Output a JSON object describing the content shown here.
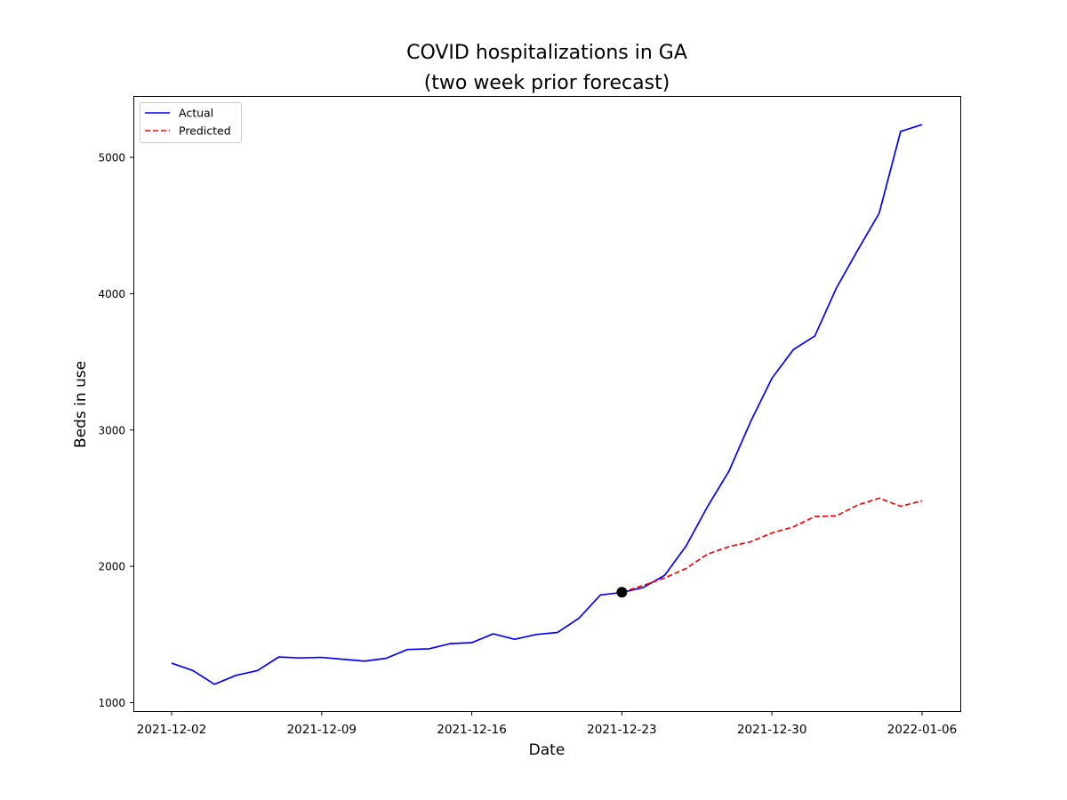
{
  "chart_data": {
    "type": "line",
    "title": [
      "COVID hospitalizations in GA",
      "(two week prior forecast)"
    ],
    "xlabel": "Date",
    "ylabel": "Beds in use",
    "x_range": [
      "2021-12-02",
      "2022-01-06"
    ],
    "ylim": [
      950,
      5450
    ],
    "x_ticks": [
      "2021-12-02",
      "2021-12-09",
      "2021-12-16",
      "2021-12-23",
      "2021-12-30",
      "2022-01-06"
    ],
    "y_ticks": [
      1000,
      2000,
      3000,
      4000,
      5000
    ],
    "grid": false,
    "legend": "upper-left",
    "series": [
      {
        "name": "Actual",
        "color": "#0000ff",
        "style": "solid",
        "x": [
          "2021-12-02",
          "2021-12-03",
          "2021-12-04",
          "2021-12-05",
          "2021-12-06",
          "2021-12-07",
          "2021-12-08",
          "2021-12-09",
          "2021-12-10",
          "2021-12-11",
          "2021-12-12",
          "2021-12-13",
          "2021-12-14",
          "2021-12-15",
          "2021-12-16",
          "2021-12-17",
          "2021-12-18",
          "2021-12-19",
          "2021-12-20",
          "2021-12-21",
          "2021-12-22",
          "2021-12-23",
          "2021-12-24",
          "2021-12-25",
          "2021-12-26",
          "2021-12-27",
          "2021-12-28",
          "2021-12-29",
          "2021-12-30",
          "2021-12-31",
          "2022-01-01",
          "2022-01-02",
          "2022-01-03",
          "2022-01-04",
          "2022-01-05",
          "2022-01-06"
        ],
        "values": [
          1290,
          1235,
          1135,
          1200,
          1235,
          1335,
          1328,
          1332,
          1318,
          1305,
          1325,
          1390,
          1395,
          1433,
          1440,
          1505,
          1465,
          1500,
          1515,
          1620,
          1790,
          1808,
          1845,
          1935,
          2150,
          2440,
          2700,
          3060,
          3380,
          3590,
          3690,
          4040,
          4320,
          4590,
          5190,
          5240
        ]
      },
      {
        "name": "Predicted",
        "color": "#ff0000",
        "style": "dashed",
        "x": [
          "2021-12-23",
          "2021-12-24",
          "2021-12-25",
          "2021-12-26",
          "2021-12-27",
          "2021-12-28",
          "2021-12-29",
          "2021-12-30",
          "2021-12-31",
          "2022-01-01",
          "2022-01-02",
          "2022-01-03",
          "2022-01-04",
          "2022-01-05",
          "2022-01-06"
        ],
        "values": [
          1810,
          1860,
          1915,
          1985,
          2090,
          2145,
          2180,
          2245,
          2290,
          2365,
          2370,
          2450,
          2500,
          2440,
          2480
        ]
      }
    ],
    "marker": {
      "x": "2021-12-23",
      "y": 1810,
      "color": "#000000"
    }
  }
}
